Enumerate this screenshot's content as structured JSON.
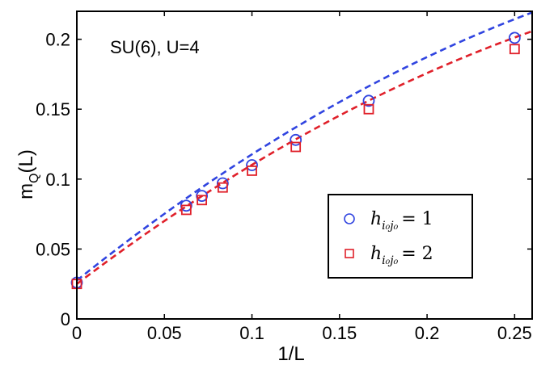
{
  "chart_data": {
    "type": "scatter",
    "title": "",
    "xlabel": "1/L",
    "ylabel_main": "m",
    "ylabel_sub": "Q",
    "ylabel_tail": "(L)",
    "xlim": [
      0,
      0.26
    ],
    "ylim": [
      0,
      0.22
    ],
    "xticks": [
      0,
      0.05,
      0.1,
      0.15,
      0.2,
      0.25
    ],
    "xtick_labels": [
      "0",
      "0.05",
      "0.1",
      "0.15",
      "0.2",
      "0.25"
    ],
    "yticks": [
      0,
      0.05,
      0.1,
      0.15,
      0.2
    ],
    "ytick_labels": [
      "0",
      "0.05",
      "0.1",
      "0.15",
      "0.2"
    ],
    "annotation": "SU(6), U=4",
    "legend_position": "lower-right",
    "series": [
      {
        "name": "h = 1",
        "legend_sub": "i₀j₀",
        "legend_eq": "= 1",
        "marker": "circle",
        "color": "#3044e0",
        "x": [
          0,
          0.0625,
          0.0714,
          0.0833,
          0.1,
          0.125,
          0.1667,
          0.25
        ],
        "y": [
          0.026,
          0.081,
          0.088,
          0.097,
          0.11,
          0.128,
          0.156,
          0.201
        ],
        "fit": [
          0.0275,
          1.005,
          -1.03
        ]
      },
      {
        "name": "h = 2",
        "legend_sub": "i₀j₀",
        "legend_eq": "= 2",
        "marker": "square",
        "color": "#e0202a",
        "x": [
          0,
          0.0625,
          0.0714,
          0.0833,
          0.1,
          0.125,
          0.1667,
          0.25
        ],
        "y": [
          0.025,
          0.078,
          0.085,
          0.094,
          0.106,
          0.123,
          0.15,
          0.193
        ],
        "fit": [
          0.025,
          0.95,
          -0.98
        ]
      }
    ]
  }
}
